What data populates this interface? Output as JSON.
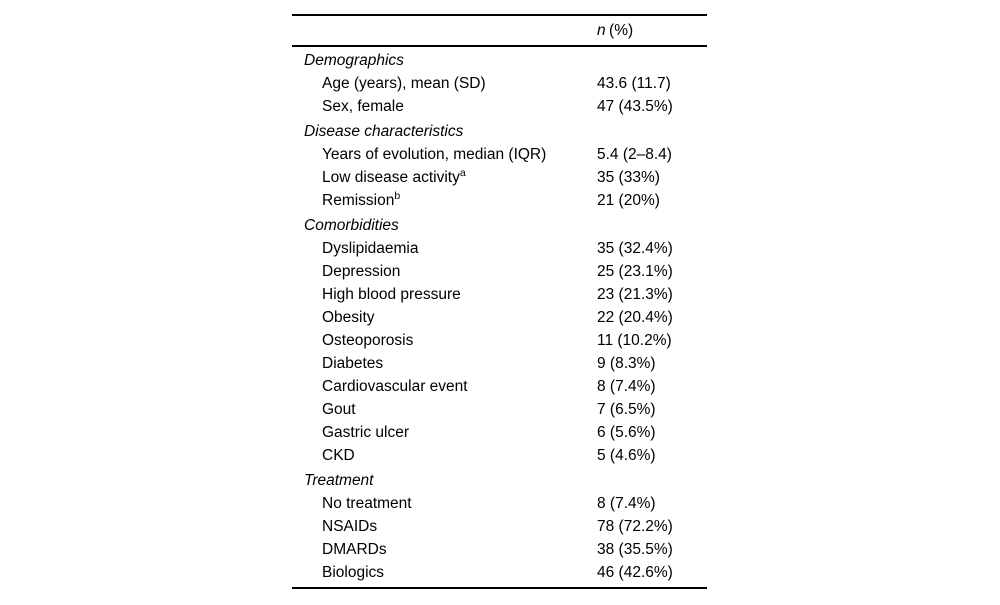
{
  "table": {
    "header": {
      "n_symbol": "n",
      "pct": "(%)"
    },
    "sections": [
      {
        "label": "Demographics",
        "rows": [
          {
            "label": "Age (years), mean (SD)",
            "value": "43.6 (11.7)"
          },
          {
            "label": "Sex, female",
            "value": "47 (43.5%)"
          }
        ]
      },
      {
        "label": "Disease characteristics",
        "rows": [
          {
            "label": "Years of evolution, median (IQR)",
            "value": "5.4 (2–8.4)"
          },
          {
            "label": "Low disease activity",
            "sup": "a",
            "value": "35 (33%)"
          },
          {
            "label": "Remission",
            "sup": "b",
            "value": "21 (20%)"
          }
        ]
      },
      {
        "label": "Comorbidities",
        "rows": [
          {
            "label": "Dyslipidaemia",
            "value": "35 (32.4%)"
          },
          {
            "label": "Depression",
            "value": "25 (23.1%)"
          },
          {
            "label": "High blood pressure",
            "value": "23 (21.3%)"
          },
          {
            "label": "Obesity",
            "value": "22 (20.4%)"
          },
          {
            "label": "Osteoporosis",
            "value": "11 (10.2%)"
          },
          {
            "label": "Diabetes",
            "value": "9 (8.3%)"
          },
          {
            "label": "Cardiovascular event",
            "value": "8 (7.4%)"
          },
          {
            "label": "Gout",
            "value": "7 (6.5%)"
          },
          {
            "label": "Gastric ulcer",
            "value": "6 (5.6%)"
          },
          {
            "label": "CKD",
            "value": "5 (4.6%)"
          }
        ]
      },
      {
        "label": "Treatment",
        "rows": [
          {
            "label": "No treatment",
            "value": "8 (7.4%)"
          },
          {
            "label": "NSAIDs",
            "value": "78 (72.2%)"
          },
          {
            "label": "DMARDs",
            "value": "38 (35.5%)"
          },
          {
            "label": "Biologics",
            "value": "46 (42.6%)"
          }
        ]
      }
    ]
  }
}
